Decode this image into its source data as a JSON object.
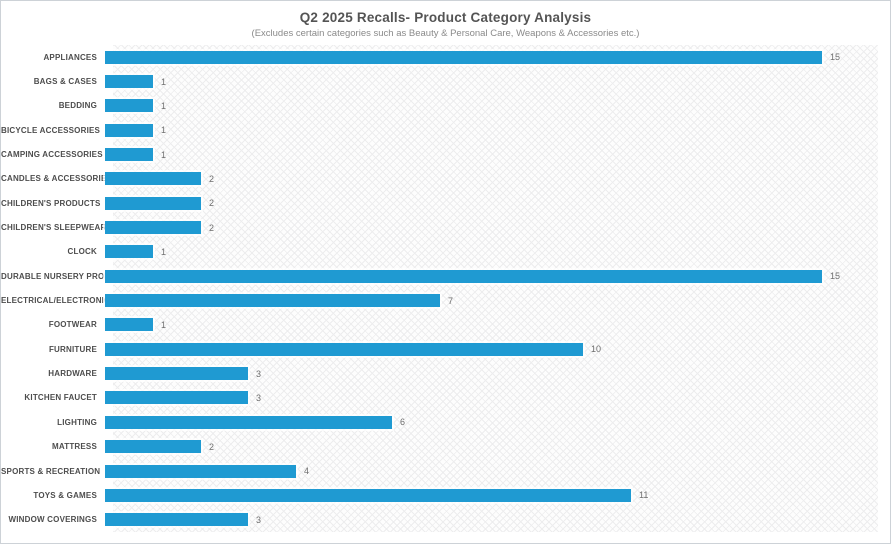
{
  "header": {
    "title": "Q2 2025 Recalls- Product Category Analysis",
    "subtitle": "(Excludes certain categories such as Beauty & Personal Care, Weapons & Accessories etc.)"
  },
  "chart_data": {
    "type": "bar",
    "orientation": "horizontal",
    "title": "Q2 2025 Recalls- Product Category Analysis",
    "subtitle": "(Excludes certain categories such as Beauty & Personal Care, Weapons & Accessories etc.)",
    "categories": [
      "APPLIANCES",
      "BAGS & CASES",
      "BEDDING",
      "BICYCLE ACCESSORIES",
      "CAMPING ACCESSORIES",
      "CANDLES & ACCESSORIES",
      "CHILDREN'S PRODUCTS",
      "CHILDREN'S SLEEPWEAR",
      "CLOCK",
      "DURABLE NURSERY PRODUCT",
      "ELECTRICAL/ELECTRONICS",
      "FOOTWEAR",
      "FURNITURE",
      "HARDWARE",
      "KITCHEN FAUCET",
      "LIGHTING",
      "MATTRESS",
      "SPORTS & RECREATION",
      "TOYS & GAMES",
      "WINDOW COVERINGS"
    ],
    "values": [
      15,
      1,
      1,
      1,
      1,
      2,
      2,
      2,
      1,
      15,
      7,
      1,
      10,
      3,
      3,
      6,
      2,
      4,
      11,
      3
    ],
    "xlabel": "",
    "ylabel": "",
    "xlim": [
      0,
      16
    ],
    "data_labels": true,
    "grid": false,
    "legend": false,
    "bar_color": "#1f9ad2",
    "value_label_color": "#6e6e6e",
    "category_label_color": "#4d4d4d",
    "title_color": "#545454",
    "subtitle_color": "#8a8a8a"
  }
}
